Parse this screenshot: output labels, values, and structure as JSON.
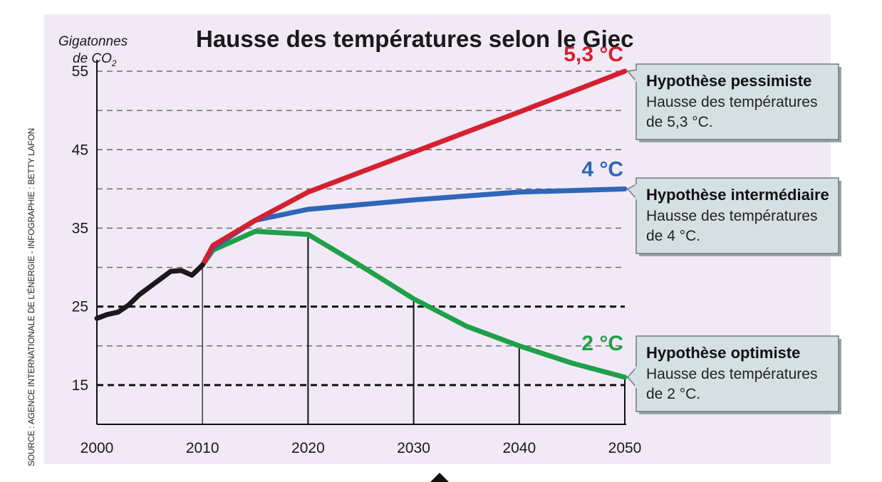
{
  "source_credit": "SOURCE : AGENCE INTERNATIONALE DE L'ÉNERGIE - INFOGRAPHIE : BETTY LAFON",
  "colors": {
    "background_panel": "#f1e9f5",
    "historical": "#1a1a1a",
    "pessimistic": "#d42030",
    "intermediate": "#2e66b8",
    "optimistic": "#1fa04a",
    "callout_box": "#d5e0e2"
  },
  "chart_data": {
    "type": "line",
    "title": "Hausse des températures selon le Giec",
    "ylabel_line1": "Gigatonnes",
    "ylabel_line2": "de CO",
    "ylabel_sub": "2",
    "xlabel": "",
    "xlim": [
      2000,
      2050
    ],
    "ylim": [
      10,
      57
    ],
    "x_ticks": [
      "2000",
      "2010",
      "2020",
      "2030",
      "2040",
      "2050"
    ],
    "y_ticks": [
      {
        "value": 55,
        "label": "55"
      },
      {
        "value": 45,
        "label": "45"
      },
      {
        "value": 35,
        "label": "35"
      },
      {
        "value": 25,
        "label": "25"
      },
      {
        "value": 15,
        "label": "15"
      }
    ],
    "gridlines": [
      55,
      50,
      45,
      40,
      35,
      30,
      25,
      20,
      15
    ],
    "bold_gridlines": [
      25,
      15
    ],
    "series": [
      {
        "key": "historical",
        "points": [
          [
            2000,
            23.5
          ],
          [
            2001,
            24
          ],
          [
            2002,
            24.3
          ],
          [
            2003,
            25.2
          ],
          [
            2004,
            26.5
          ],
          [
            2005,
            27.5
          ],
          [
            2006,
            28.5
          ],
          [
            2007,
            29.5
          ],
          [
            2008,
            29.6
          ],
          [
            2009,
            29
          ],
          [
            2010,
            30.3
          ]
        ]
      },
      {
        "key": "pessimistic",
        "end_label": "5,3 °C",
        "points": [
          [
            2010,
            30.3
          ],
          [
            2011,
            32.8
          ],
          [
            2015,
            36
          ],
          [
            2020,
            39.6
          ],
          [
            2030,
            44.7
          ],
          [
            2040,
            49.8
          ],
          [
            2050,
            55
          ]
        ]
      },
      {
        "key": "intermediate",
        "end_label": "4 °C",
        "points": [
          [
            2010,
            30.3
          ],
          [
            2011,
            32.5
          ],
          [
            2015,
            36
          ],
          [
            2020,
            37.4
          ],
          [
            2030,
            38.6
          ],
          [
            2040,
            39.6
          ],
          [
            2050,
            40
          ]
        ]
      },
      {
        "key": "optimistic",
        "end_label": "2 °C",
        "points": [
          [
            2010,
            30.3
          ],
          [
            2011,
            32.2
          ],
          [
            2015,
            34.6
          ],
          [
            2020,
            34.2
          ],
          [
            2025,
            30.2
          ],
          [
            2030,
            26
          ],
          [
            2035,
            22.5
          ],
          [
            2040,
            20
          ],
          [
            2045,
            17.8
          ],
          [
            2050,
            16
          ]
        ]
      }
    ],
    "drop_lines": [
      {
        "x": 2010,
        "y": 30.3
      },
      {
        "x": 2020,
        "y": 34.2
      },
      {
        "x": 2030,
        "y": 26
      },
      {
        "x": 2040,
        "y": 20
      },
      {
        "x": 2050,
        "y": 16
      }
    ],
    "callouts": [
      {
        "key": "pessimistic",
        "title": "Hypothèse pessimiste",
        "line1": "Hausse des températures",
        "line2": "de 5,3 °C."
      },
      {
        "key": "intermediate",
        "title": "Hypothèse intermédiaire",
        "line1": "Hausse des températures",
        "line2": "de 4 °C."
      },
      {
        "key": "optimistic",
        "title": "Hypothèse optimiste",
        "line1": "Hausse des températures",
        "line2": "de 2 °C."
      }
    ]
  }
}
